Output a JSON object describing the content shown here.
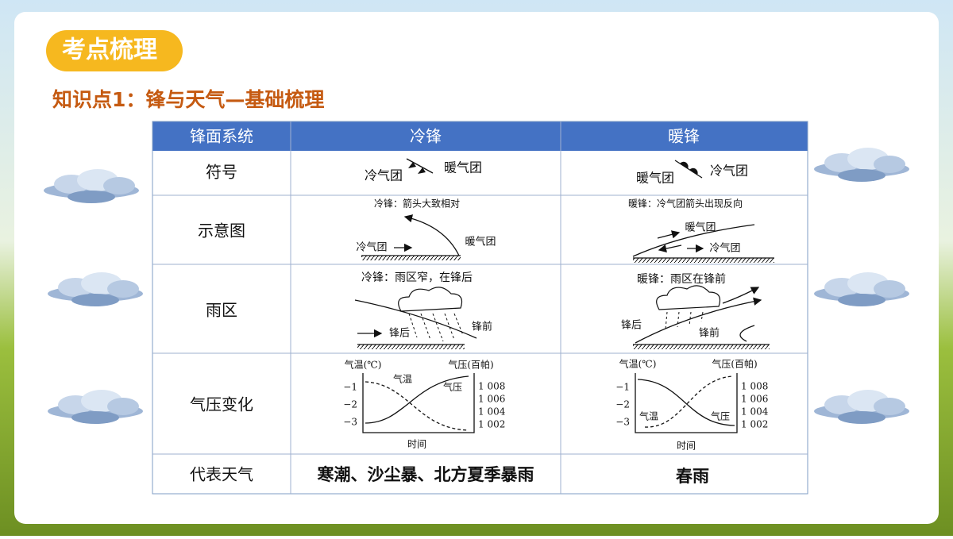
{
  "header": {
    "badge": "考点梳理",
    "title": "知识点1：锋与天气—基础梳理"
  },
  "table": {
    "headers": [
      "锋面系统",
      "冷锋",
      "暖锋"
    ],
    "rows": [
      {
        "label": "符号",
        "cold": {
          "labels": [
            "冷气团",
            "暖气团"
          ]
        },
        "warm": {
          "labels": [
            "暖气团",
            "冷气团"
          ]
        }
      },
      {
        "label": "示意图",
        "cold": {
          "caption": "冷锋：箭头大致相对",
          "labels": [
            "冷气团",
            "暖气团"
          ]
        },
        "warm": {
          "caption": "暖锋：冷气团箭头出现反向",
          "labels": [
            "暖气团",
            "冷气团"
          ]
        }
      },
      {
        "label": "雨区",
        "cold": {
          "caption": "冷锋：雨区窄，在锋后",
          "labels": [
            "锋后",
            "锋前"
          ]
        },
        "warm": {
          "caption": "暖锋：雨区在锋前",
          "labels": [
            "锋后",
            "锋前"
          ]
        }
      },
      {
        "label": "气压变化",
        "cold": {
          "y_label": "气温(℃)",
          "y2_label": "气压(百帕)",
          "yticks": [
            "−1",
            "−2",
            "−3"
          ],
          "y2ticks": [
            "1 008",
            "1 006",
            "1 004",
            "1 002"
          ],
          "labels": [
            "气温",
            "气压"
          ],
          "x_label": "时间"
        },
        "warm": {
          "y_label": "气温(℃)",
          "y2_label": "气压(百帕)",
          "yticks": [
            "−1",
            "−2",
            "−3"
          ],
          "y2ticks": [
            "1 008",
            "1 006",
            "1 004",
            "1 002"
          ],
          "labels": [
            "气温",
            "气压"
          ],
          "x_label": "时间"
        }
      },
      {
        "label": "代表天气",
        "cold": {
          "text": "寒潮、沙尘暴、北方夏季暴雨"
        },
        "warm": {
          "text": "春雨"
        }
      }
    ]
  }
}
